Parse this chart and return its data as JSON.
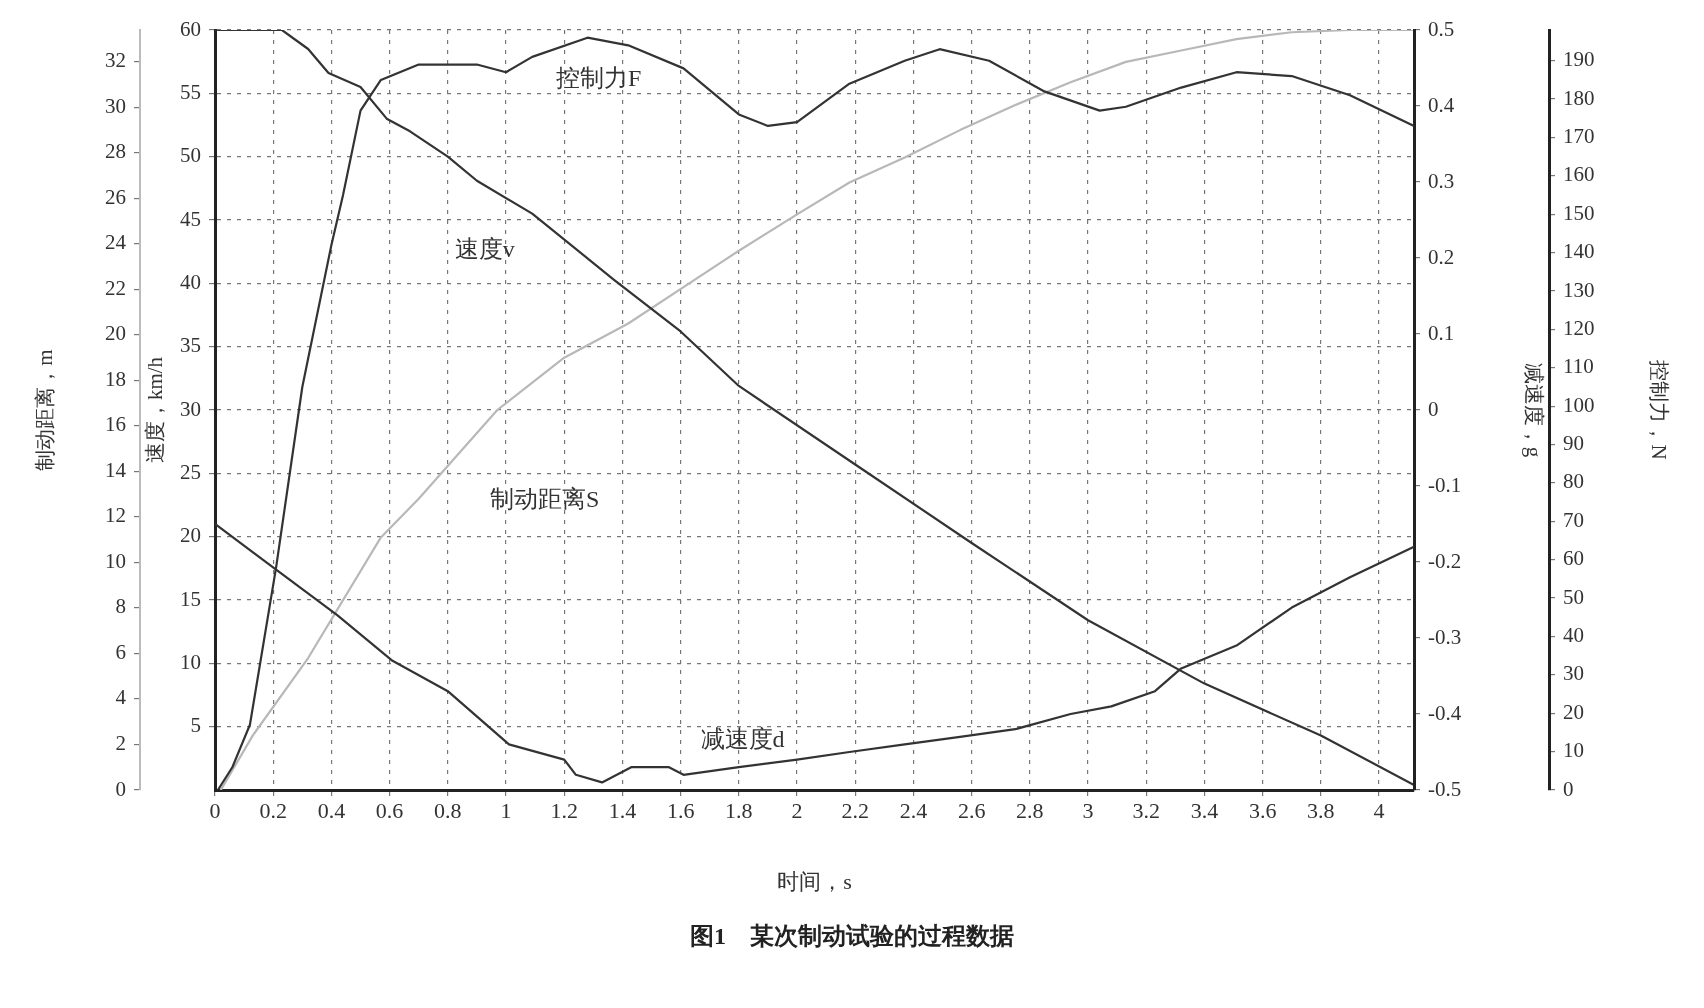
{
  "chart_data": [
    {
      "type": "line",
      "title": "图1　某次制动试验的过程数据",
      "xlabel": "时间，s",
      "ylabel": "速度，km/h",
      "y2label": "制动距离，m",
      "xlim": [
        0,
        4.12
      ],
      "xticks": [
        0,
        0.2,
        0.4,
        0.6,
        0.8,
        1,
        1.2,
        1.4,
        1.6,
        1.8,
        2,
        2.2,
        2.4,
        2.6,
        2.8,
        3,
        3.2,
        3.4,
        3.6,
        3.8,
        4
      ],
      "ylim": [
        0,
        60
      ],
      "yticks": [
        5,
        10,
        15,
        20,
        25,
        30,
        35,
        40,
        45,
        50,
        55,
        60
      ],
      "y2lim": [
        0,
        33.4
      ],
      "y2ticks": [
        0,
        2,
        4,
        6,
        8,
        10,
        12,
        14,
        16,
        18,
        20,
        22,
        24,
        26,
        28,
        30,
        32
      ],
      "grid": true,
      "marker": "none",
      "line_style": "solid",
      "annotations": [
        "速度v",
        "制动距离S"
      ],
      "series": [
        {
          "color": "#333333",
          "x": [
            0,
            0.23,
            0.32,
            0.39,
            0.5,
            0.59,
            0.67,
            0.8,
            0.9,
            1.09,
            1.37,
            1.6,
            1.8,
            2.2,
            2.6,
            3.0,
            3.4,
            3.8,
            4.12
          ],
          "values": [
            60,
            60,
            58.5,
            56.6,
            55.5,
            53,
            52,
            50,
            48.1,
            45.5,
            40.3,
            36.2,
            31.9,
            25.7,
            19.5,
            13.4,
            8.4,
            4.3,
            0.4
          ]
        },
        {
          "color": "#b8b8b8",
          "axis": "y2",
          "x": [
            0.02,
            0.13,
            0.32,
            0.57,
            0.7,
            0.97,
            1.2,
            1.42,
            1.61,
            1.8,
            2.0,
            2.18,
            2.37,
            2.56,
            2.75,
            2.94,
            3.13,
            3.32,
            3.51,
            3.7,
            3.9,
            4.12
          ],
          "values": [
            0,
            2.4,
            5.8,
            11.1,
            12.8,
            16.7,
            19,
            20.5,
            22.1,
            23.7,
            25.3,
            26.7,
            27.8,
            29,
            30.1,
            31.1,
            32,
            32.5,
            33,
            33.3,
            33.4,
            33.4
          ]
        }
      ]
    },
    {
      "type": "line",
      "y2label": "减速度，g",
      "y3label": "控制力，N",
      "tick_labels": "y",
      "xlim": [
        0,
        4.12
      ],
      "y2lim": [
        -0.5,
        0.5
      ],
      "y2ticks": [
        -0.5,
        -0.4,
        -0.3,
        -0.2,
        -0.1,
        0,
        0.1,
        0.2,
        0.3,
        0.4,
        0.5
      ],
      "y3lim": [
        0,
        198
      ],
      "y3ticks": [
        0,
        10,
        20,
        30,
        40,
        50,
        60,
        70,
        80,
        90,
        100,
        110,
        120,
        130,
        140,
        150,
        160,
        170,
        180,
        190
      ],
      "marker": "none",
      "line_style": "solid",
      "annotations": [
        "控制力F",
        "减速度d"
      ],
      "series": [
        {
          "color": "#333333",
          "axis": "y3",
          "x": [
            0.01,
            0.06,
            0.12,
            0.21,
            0.3,
            0.4,
            0.44,
            0.5,
            0.57,
            0.7,
            0.9,
            1.0,
            1.09,
            1.28,
            1.42,
            1.61,
            1.8,
            1.9,
            2.0,
            2.18,
            2.37,
            2.49,
            2.66,
            2.85,
            3.04,
            3.13,
            3.32,
            3.51,
            3.7,
            3.9,
            4.12
          ],
          "values": [
            0,
            6,
            17,
            58,
            105,
            142,
            155,
            177,
            185,
            189,
            189,
            187,
            191,
            196,
            194,
            188,
            176,
            173,
            174,
            184,
            190,
            193,
            190,
            182,
            177,
            178,
            183,
            187,
            186,
            181,
            173
          ]
        },
        {
          "color": "#333333",
          "axis": "y2",
          "x": [
            0,
            0.21,
            0.42,
            0.61,
            0.8,
            1.01,
            1.2,
            1.24,
            1.33,
            1.43,
            1.56,
            1.61,
            1.8,
            2.0,
            2.18,
            2.37,
            2.56,
            2.75,
            2.94,
            3.08,
            3.23,
            3.32,
            3.51,
            3.7,
            3.9,
            4.12
          ],
          "values": [
            -0.15,
            -0.21,
            -0.27,
            -0.33,
            -0.37,
            -0.44,
            -0.46,
            -0.48,
            -0.49,
            -0.47,
            -0.47,
            -0.48,
            -0.47,
            -0.46,
            -0.45,
            -0.44,
            -0.43,
            -0.42,
            -0.4,
            -0.39,
            -0.37,
            -0.34,
            -0.31,
            -0.26,
            -0.22,
            -0.18
          ]
        }
      ]
    }
  ]
}
